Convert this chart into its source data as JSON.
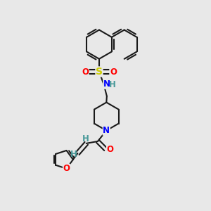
{
  "background_color": "#e8e8e8",
  "line_color": "#1a1a1a",
  "bond_width": 1.5,
  "atom_colors": {
    "N": "#0000ff",
    "O": "#ff0000",
    "S": "#cccc00",
    "H": "#4a9a9a"
  },
  "font_size_atom": 8.5,
  "font_size_H": 7.5
}
